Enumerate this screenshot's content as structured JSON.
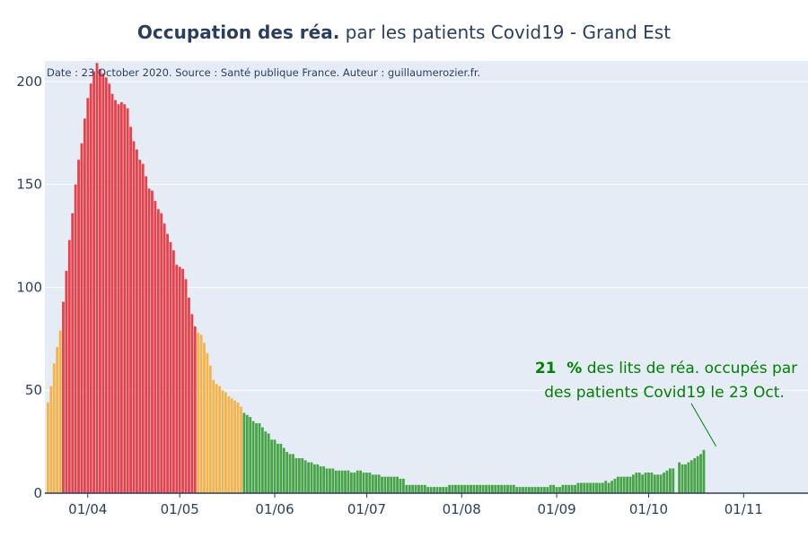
{
  "chart_data": {
    "type": "bar",
    "title_bold": "Occupation des réa.",
    "title_rest": " par les patients Covid19 - Grand Est",
    "note": "Date : 23 October 2020. Source : Santé publique France. Auteur : guillaumerozier.fr.",
    "annotation": {
      "pct": "21  %",
      "line1_rest": " des lits de réa. occupés par",
      "line2": "des patients Covid19 le 23 Oct.",
      "date": "2020-10-23",
      "value": 21
    },
    "x_start": "2020-03-19",
    "x_range": [
      "2020-03-18",
      "2020-11-22"
    ],
    "ylim": [
      0,
      210
    ],
    "grid": true,
    "yticks": [
      0,
      50,
      100,
      150,
      200
    ],
    "xticks": [
      {
        "date": "2020-04-01",
        "label": "01/04"
      },
      {
        "date": "2020-05-01",
        "label": "01/05"
      },
      {
        "date": "2020-06-01",
        "label": "01/06"
      },
      {
        "date": "2020-07-01",
        "label": "01/07"
      },
      {
        "date": "2020-08-01",
        "label": "01/08"
      },
      {
        "date": "2020-09-01",
        "label": "01/09"
      },
      {
        "date": "2020-10-01",
        "label": "01/10"
      },
      {
        "date": "2020-11-01",
        "label": "01/11"
      }
    ],
    "colors": {
      "high": "#e8414a",
      "medium": "#f4b44b",
      "low": "#47a447"
    },
    "values": [
      44,
      52,
      63,
      71,
      79,
      93,
      108,
      123,
      136,
      150,
      162,
      170,
      182,
      192,
      199,
      205,
      209,
      206,
      204,
      202,
      199,
      194,
      191,
      189,
      190,
      189,
      187,
      178,
      171,
      167,
      162,
      160,
      154,
      148,
      147,
      142,
      138,
      136,
      131,
      126,
      122,
      118,
      111,
      110,
      109,
      104,
      95,
      87,
      81,
      78,
      77,
      73,
      68,
      62,
      55,
      53,
      52,
      50,
      49,
      47,
      46,
      45,
      44,
      42,
      39,
      38,
      37,
      35,
      34,
      34,
      32,
      30,
      29,
      26,
      26,
      24,
      24,
      22,
      20,
      19,
      19,
      17,
      17,
      17,
      16,
      15,
      15,
      14,
      14,
      13,
      13,
      12,
      12,
      12,
      11,
      11,
      11,
      11,
      11,
      10,
      10,
      11,
      11,
      10,
      10,
      10,
      9,
      9,
      9,
      8,
      8,
      8,
      8,
      8,
      8,
      7,
      7,
      4,
      4,
      4,
      4,
      4,
      4,
      4,
      3,
      3,
      3,
      3,
      3,
      3,
      3,
      4,
      4,
      4,
      4,
      4,
      4,
      4,
      4,
      4,
      4,
      4,
      4,
      4,
      4,
      4,
      4,
      4,
      4,
      4,
      4,
      4,
      4,
      3,
      3,
      3,
      3,
      3,
      3,
      3,
      3,
      3,
      3,
      3,
      4,
      4,
      3,
      3,
      4,
      4,
      4,
      4,
      4,
      5,
      5,
      5,
      5,
      5,
      5,
      5,
      5,
      5,
      6,
      5,
      6,
      7,
      8,
      8,
      8,
      8,
      8,
      9,
      10,
      10,
      9,
      10,
      10,
      10,
      9,
      9,
      9,
      10,
      11,
      12,
      12,
      0,
      15,
      14,
      14,
      15,
      16,
      17,
      18,
      19,
      21
    ]
  }
}
